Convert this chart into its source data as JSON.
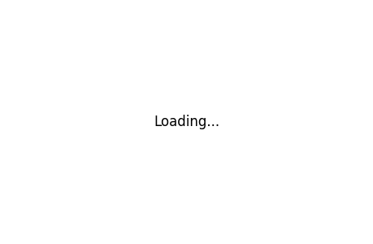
{
  "background_color": "#ffffff",
  "line_color": "#000000",
  "line_width": 1.0,
  "fig_width": 4.6,
  "fig_height": 3.0,
  "dpi": 100
}
